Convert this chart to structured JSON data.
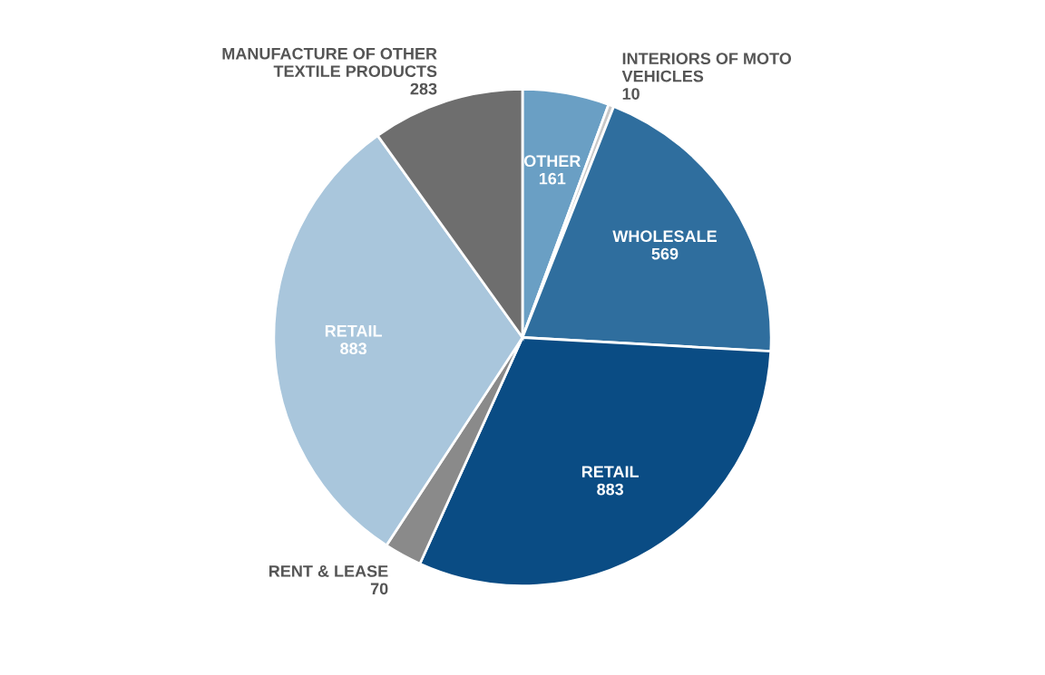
{
  "chart_data": {
    "type": "pie",
    "categories": [
      "OTHER",
      "INTERIORS OF MOTO\nVEHICLES",
      "WHOLESALE",
      "RETAIL",
      "RENT & LEASE",
      "RETAIL",
      "MANUFACTURE OF OTHER\nTEXTILE PRODUCTS"
    ],
    "values": [
      161,
      10,
      569,
      883,
      70,
      883,
      283
    ],
    "colors": [
      "#6a9fc4",
      "#c8c8c8",
      "#2f6e9e",
      "#0a4c84",
      "#8a8a8a",
      "#a9c6dc",
      "#6e6e6e"
    ],
    "data_labels": true,
    "legend": false
  }
}
